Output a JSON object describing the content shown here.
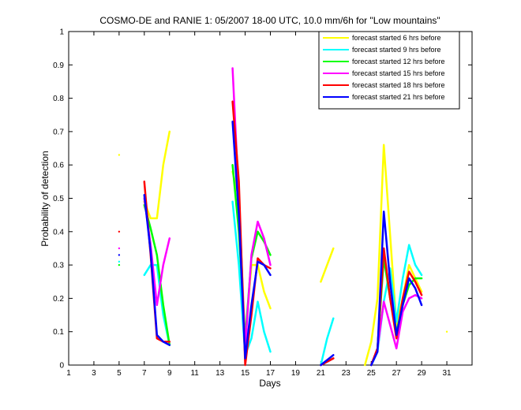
{
  "chart_data": {
    "type": "line",
    "title": "COSMO-DE and RANIE 1: 05/2007 18-00 UTC, 10.0 mm/6h for \"Low mountains\"",
    "xlabel": "Days",
    "ylabel": "Probability of detection",
    "xlim": [
      1,
      33
    ],
    "ylim": [
      0,
      1
    ],
    "xticks": [
      1,
      3,
      5,
      7,
      9,
      11,
      13,
      15,
      17,
      19,
      21,
      23,
      25,
      27,
      29,
      31
    ],
    "yticks": [
      0,
      0.1,
      0.2,
      0.3,
      0.4,
      0.5,
      0.6,
      0.7,
      0.8,
      0.9,
      1
    ],
    "grid": false,
    "legend_position": "top-right",
    "series": [
      {
        "name": "forecast started 6 hrs before",
        "color": "#ffff00",
        "segments": [
          [
            [
              5,
              0.63
            ]
          ],
          [
            [
              7,
              0.49
            ],
            [
              7.5,
              0.44
            ],
            [
              8,
              0.44
            ],
            [
              8.5,
              0.6
            ],
            [
              9,
              0.7
            ]
          ],
          [
            [
              14,
              0.58
            ],
            [
              14.5,
              0.5
            ],
            [
              15,
              0.07
            ],
            [
              15.5,
              0.3
            ],
            [
              16,
              0.3
            ],
            [
              16.5,
              0.22
            ],
            [
              17,
              0.17
            ]
          ],
          [
            [
              21,
              0.25
            ],
            [
              22,
              0.35
            ]
          ],
          [
            [
              24.5,
              0.0
            ],
            [
              25,
              0.07
            ],
            [
              25.5,
              0.2
            ],
            [
              26,
              0.66
            ],
            [
              26.5,
              0.39
            ],
            [
              27,
              0.12
            ],
            [
              27.5,
              0.2
            ],
            [
              28,
              0.3
            ],
            [
              29,
              0.22
            ]
          ],
          [
            [
              31,
              0.1
            ]
          ]
        ]
      },
      {
        "name": "forecast started 9 hrs before",
        "color": "#00ffff",
        "segments": [
          [
            [
              5,
              0.31
            ]
          ],
          [
            [
              7,
              0.27
            ],
            [
              7.5,
              0.3
            ],
            [
              8,
              0.3
            ],
            [
              8.5,
              0.15
            ],
            [
              9,
              0.06
            ]
          ],
          [
            [
              14,
              0.49
            ],
            [
              14.5,
              0.3
            ],
            [
              15,
              0.03
            ],
            [
              15.5,
              0.08
            ],
            [
              16,
              0.19
            ],
            [
              16.5,
              0.1
            ],
            [
              17,
              0.04
            ]
          ],
          [
            [
              21,
              0.0
            ],
            [
              21.5,
              0.08
            ],
            [
              22,
              0.14
            ]
          ],
          [
            [
              25,
              0.0
            ],
            [
              25.5,
              0.04
            ],
            [
              26,
              0.19
            ],
            [
              26.5,
              0.29
            ],
            [
              27,
              0.13
            ],
            [
              27.5,
              0.26
            ],
            [
              28,
              0.36
            ],
            [
              28.5,
              0.3
            ],
            [
              29,
              0.27
            ]
          ]
        ]
      },
      {
        "name": "forecast started 12 hrs before",
        "color": "#00ff00",
        "segments": [
          [
            [
              5,
              0.3
            ]
          ],
          [
            [
              7,
              0.48
            ],
            [
              7.5,
              0.41
            ],
            [
              8,
              0.33
            ],
            [
              8.5,
              0.18
            ],
            [
              9,
              0.06
            ]
          ],
          [
            [
              14,
              0.6
            ],
            [
              14.5,
              0.4
            ],
            [
              15,
              0.08
            ],
            [
              15.5,
              0.32
            ],
            [
              16,
              0.4
            ],
            [
              16.5,
              0.37
            ],
            [
              17,
              0.33
            ]
          ],
          [
            [
              21,
              0.0
            ],
            [
              22,
              0.02
            ]
          ],
          [
            [
              25,
              0.0
            ],
            [
              25.5,
              0.05
            ],
            [
              26,
              0.32
            ],
            [
              26.5,
              0.2
            ],
            [
              27,
              0.1
            ],
            [
              27.5,
              0.18
            ],
            [
              28,
              0.24
            ],
            [
              28.5,
              0.26
            ],
            [
              29,
              0.26
            ]
          ]
        ]
      },
      {
        "name": "forecast started 15 hrs before",
        "color": "#ff00ff",
        "segments": [
          [
            [
              5,
              0.35
            ]
          ],
          [
            [
              7,
              0.5
            ],
            [
              7.5,
              0.36
            ],
            [
              8,
              0.18
            ],
            [
              8.5,
              0.3
            ],
            [
              9,
              0.38
            ]
          ],
          [
            [
              14,
              0.89
            ],
            [
              14.5,
              0.5
            ],
            [
              15,
              0.05
            ],
            [
              15.5,
              0.33
            ],
            [
              16,
              0.43
            ],
            [
              16.5,
              0.38
            ],
            [
              17,
              0.3
            ]
          ],
          [
            [
              21,
              0.0
            ],
            [
              22,
              0.02
            ]
          ],
          [
            [
              25,
              0.0
            ],
            [
              25.5,
              0.05
            ],
            [
              26,
              0.19
            ],
            [
              26.5,
              0.12
            ],
            [
              27,
              0.05
            ],
            [
              27.5,
              0.16
            ],
            [
              28,
              0.2
            ],
            [
              28.5,
              0.21
            ],
            [
              29,
              0.2
            ]
          ]
        ]
      },
      {
        "name": "forecast started 18 hrs before",
        "color": "#ff0000",
        "segments": [
          [
            [
              5,
              0.4
            ]
          ],
          [
            [
              7,
              0.55
            ],
            [
              7.5,
              0.33
            ],
            [
              8,
              0.08
            ],
            [
              8.5,
              0.07
            ],
            [
              9,
              0.07
            ]
          ],
          [
            [
              14,
              0.79
            ],
            [
              14.5,
              0.55
            ],
            [
              15,
              0.0
            ],
            [
              15.5,
              0.15
            ],
            [
              16,
              0.32
            ],
            [
              16.5,
              0.3
            ],
            [
              17,
              0.29
            ]
          ],
          [
            [
              21,
              0.0
            ],
            [
              22,
              0.02
            ]
          ],
          [
            [
              25,
              0.0
            ],
            [
              25.5,
              0.05
            ],
            [
              26,
              0.35
            ],
            [
              26.5,
              0.2
            ],
            [
              27,
              0.08
            ],
            [
              27.5,
              0.2
            ],
            [
              28,
              0.28
            ],
            [
              28.5,
              0.25
            ],
            [
              29,
              0.21
            ]
          ]
        ]
      },
      {
        "name": "forecast started 21 hrs before",
        "color": "#0000ff",
        "segments": [
          [
            [
              5,
              0.33
            ]
          ],
          [
            [
              7,
              0.51
            ],
            [
              7.5,
              0.34
            ],
            [
              8,
              0.09
            ],
            [
              8.5,
              0.07
            ],
            [
              9,
              0.06
            ]
          ],
          [
            [
              14,
              0.73
            ],
            [
              14.5,
              0.45
            ],
            [
              15,
              0.02
            ],
            [
              15.5,
              0.18
            ],
            [
              16,
              0.31
            ],
            [
              16.5,
              0.3
            ],
            [
              17,
              0.27
            ]
          ],
          [
            [
              21,
              0.0
            ],
            [
              22,
              0.03
            ]
          ],
          [
            [
              25,
              0.0
            ],
            [
              25.5,
              0.04
            ],
            [
              26,
              0.46
            ],
            [
              26.5,
              0.25
            ],
            [
              27,
              0.09
            ],
            [
              27.5,
              0.18
            ],
            [
              28,
              0.26
            ],
            [
              28.5,
              0.23
            ],
            [
              29,
              0.18
            ]
          ]
        ]
      }
    ]
  }
}
